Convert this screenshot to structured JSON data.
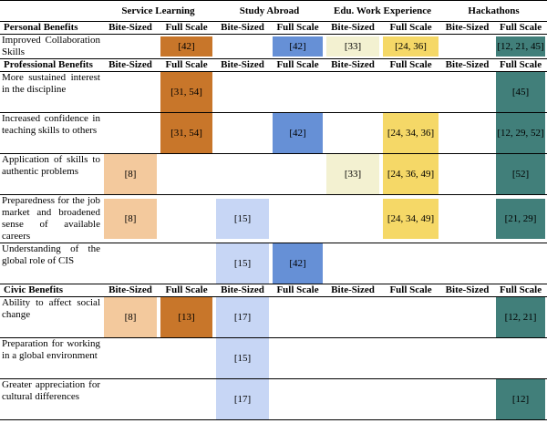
{
  "headers": {
    "groups": [
      "Service Learning",
      "Study Abroad",
      "Edu. Work Experience",
      "Hackathons"
    ],
    "sub": [
      "Bite-Sized",
      "Full Scale"
    ]
  },
  "sections": [
    {
      "title": "Personal Benefits",
      "rows": [
        {
          "label": "Improved Collaboration Skills",
          "cells": [
            "",
            "[42]",
            "",
            "[42]",
            "[33]",
            "[24, 36]",
            "",
            "[12, 21, 45]"
          ]
        }
      ]
    },
    {
      "title": "Professional Benefits",
      "rows": [
        {
          "label": "More sustained interest in the discipline",
          "cells": [
            "",
            "[31, 54]",
            "",
            "",
            "",
            "",
            "",
            "[45]"
          ]
        },
        {
          "label": "Increased confidence in teaching skills to others",
          "cells": [
            "",
            "[31, 54]",
            "",
            "[42]",
            "",
            "[24, 34, 36]",
            "",
            "[12, 29, 52]"
          ]
        },
        {
          "label": "Application of skills to authentic problems",
          "cells": [
            "[8]",
            "",
            "",
            "",
            "[33]",
            "[24, 36, 49]",
            "",
            "[52]"
          ]
        },
        {
          "label": "Preparedness for the job market and broadened sense of available careers",
          "cells": [
            "[8]",
            "",
            "[15]",
            "",
            "",
            "[24, 34, 49]",
            "",
            "[21, 29]"
          ]
        },
        {
          "label": "Understanding of the global role of CIS",
          "cells": [
            "",
            "",
            "[15]",
            "[42]",
            "",
            "",
            "",
            ""
          ]
        }
      ]
    },
    {
      "title": "Civic Benefits",
      "rows": [
        {
          "label": "Ability to affect social change",
          "cells": [
            "[8]",
            "[13]",
            "[17]",
            "",
            "",
            "",
            "",
            "[12, 21]"
          ]
        },
        {
          "label": "Preparation for working in a global environment",
          "cells": [
            "",
            "",
            "[15]",
            "",
            "",
            "",
            "",
            ""
          ]
        },
        {
          "label": "Greater appreciation for cultural differences",
          "cells": [
            "",
            "",
            "[17]",
            "",
            "",
            "",
            "",
            "[12]"
          ]
        }
      ]
    }
  ]
}
